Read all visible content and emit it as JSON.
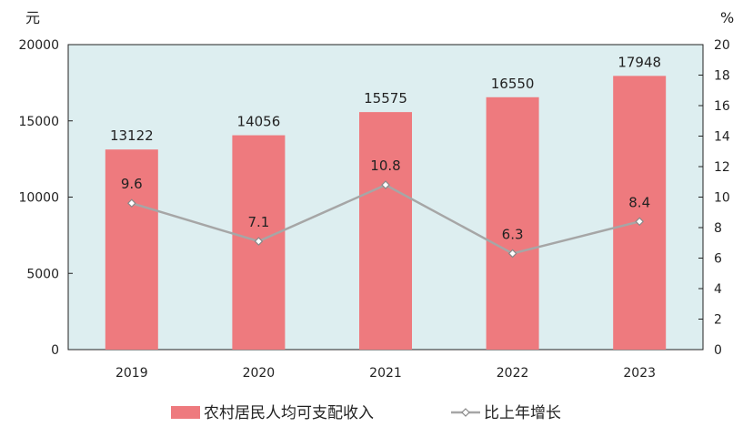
{
  "chart_data": {
    "type": "bar",
    "categories": [
      "2019",
      "2020",
      "2021",
      "2022",
      "2023"
    ],
    "series": [
      {
        "name": "农村居民人均可支配收入",
        "type": "bar",
        "axis": "left",
        "values": [
          13122,
          14056,
          15575,
          16550,
          17948
        ],
        "color": "#ee7a7e"
      },
      {
        "name": "比上年增长",
        "type": "line",
        "axis": "right",
        "values": [
          9.6,
          7.1,
          10.8,
          6.3,
          8.4
        ],
        "color": "#a6a6a6"
      }
    ],
    "y_left": {
      "unit": "元",
      "lim": [
        0,
        20000
      ],
      "ticks": [
        0,
        5000,
        10000,
        15000,
        20000
      ]
    },
    "y_right": {
      "unit": "%",
      "lim": [
        0,
        20
      ],
      "ticks": [
        0,
        2,
        4,
        6,
        8,
        10,
        12,
        14,
        16,
        18,
        20
      ]
    },
    "value_labels": {
      "bars": [
        "13122",
        "14056",
        "15575",
        "16550",
        "17948"
      ],
      "line": [
        "9.6",
        "7.1",
        "10.8",
        "6.3",
        "8.4"
      ]
    },
    "plot_background": "#ddeef0",
    "legend_position": "bottom",
    "grid": false
  }
}
